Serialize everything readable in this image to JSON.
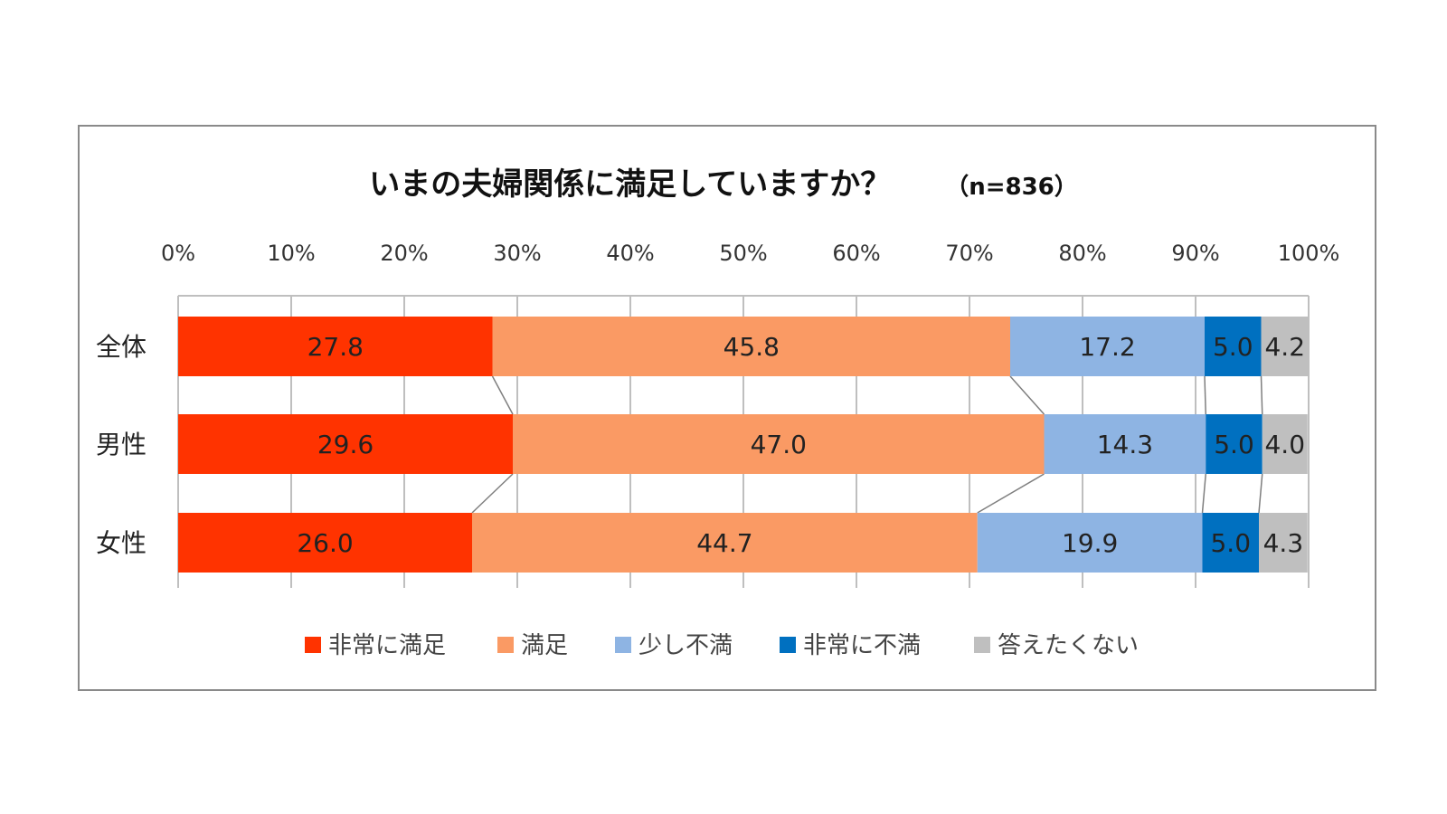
{
  "chart_data": {
    "type": "bar",
    "orientation": "horizontal",
    "stacked": true,
    "percent": true,
    "title": "いまの夫婦関係に満足していますか？",
    "note": "（n=836）",
    "categories": [
      "全体",
      "男性",
      "女性"
    ],
    "series": [
      {
        "name": "非常に満足",
        "color": "#ff3300",
        "values": [
          27.8,
          29.6,
          26.0
        ]
      },
      {
        "name": "満足",
        "color": "#fa9a64",
        "values": [
          45.8,
          47.0,
          44.7
        ]
      },
      {
        "name": "少し不満",
        "color": "#8eb4e3",
        "values": [
          17.2,
          14.3,
          19.9
        ]
      },
      {
        "name": "非常に不満",
        "color": "#0070c0",
        "values": [
          5.0,
          5.0,
          5.0
        ]
      },
      {
        "name": "答えたくない",
        "color": "#bfbfbf",
        "values": [
          4.2,
          4.0,
          4.3
        ]
      }
    ],
    "value_labels": [
      [
        "27.8",
        "45.8",
        "17.2",
        "5.0",
        "4.2"
      ],
      [
        "29.6",
        "47.0",
        "14.3",
        "5.0",
        "4.0"
      ],
      [
        "26.0",
        "44.7",
        "19.9",
        "5.0",
        "4.3"
      ]
    ],
    "xlim": [
      0,
      100
    ],
    "xticks": [
      "0%",
      "10%",
      "20%",
      "30%",
      "40%",
      "50%",
      "60%",
      "70%",
      "80%",
      "90%",
      "100%"
    ],
    "axis_position": "top",
    "grid": true,
    "series_lines": true,
    "legend": "bottom",
    "gridline_color": "#bfbfbf",
    "label_color": "#222222"
  }
}
